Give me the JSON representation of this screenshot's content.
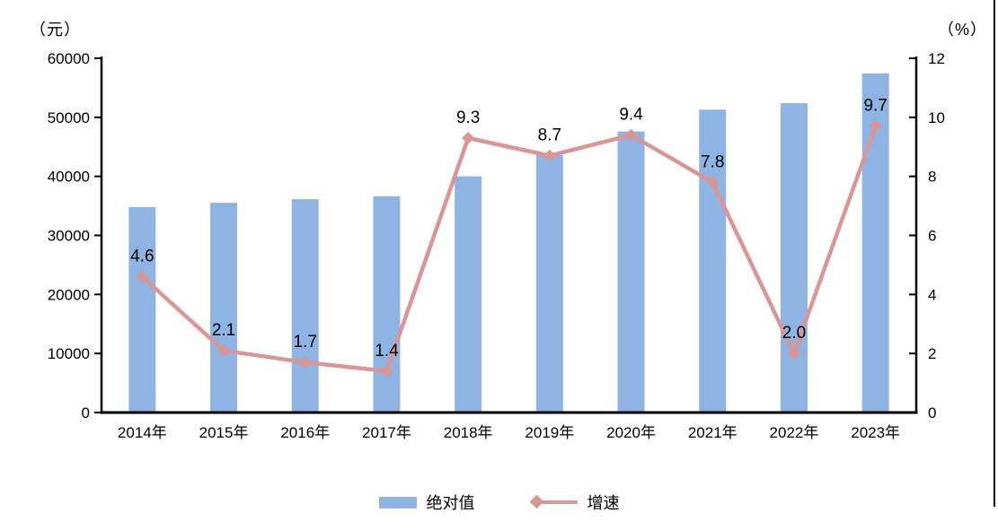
{
  "chart_data": {
    "type": "combo-bar-line",
    "title": "",
    "categories": [
      "2014年",
      "2015年",
      "2016年",
      "2017年",
      "2018年",
      "2019年",
      "2020年",
      "2021年",
      "2022年",
      "2023年"
    ],
    "series": [
      {
        "name": "绝对值",
        "type": "bar",
        "axis": "left",
        "unit": "元",
        "color": "#8DB4E2",
        "values": [
          34800,
          35530,
          36130,
          36640,
          40000,
          43600,
          47600,
          51300,
          52400,
          57450
        ]
      },
      {
        "name": "增速",
        "type": "line",
        "axis": "right",
        "unit": "%",
        "color": "#D99694",
        "marker": "diamond",
        "values": [
          4.6,
          2.1,
          1.7,
          1.4,
          9.3,
          8.7,
          9.4,
          7.8,
          2.0,
          9.7
        ],
        "data_labels": [
          "4.6",
          "2.1",
          "1.7",
          "1.4",
          "9.3",
          "8.7",
          "9.4",
          "7.8",
          "2.0",
          "9.7"
        ]
      }
    ],
    "axes": {
      "left": {
        "unit_label": "（元）",
        "min": 0,
        "max": 60000,
        "step": 10000,
        "tick_labels": [
          "0",
          "10000",
          "20000",
          "30000",
          "40000",
          "50000",
          "60000"
        ]
      },
      "right": {
        "unit_label": "（%）",
        "min": 0,
        "max": 12,
        "step": 2,
        "tick_labels": [
          "0",
          "2",
          "4",
          "6",
          "8",
          "10",
          "12"
        ]
      }
    },
    "legend_position": "bottom",
    "grid": false,
    "text_color": "#000000",
    "axis_color": "#000000"
  }
}
